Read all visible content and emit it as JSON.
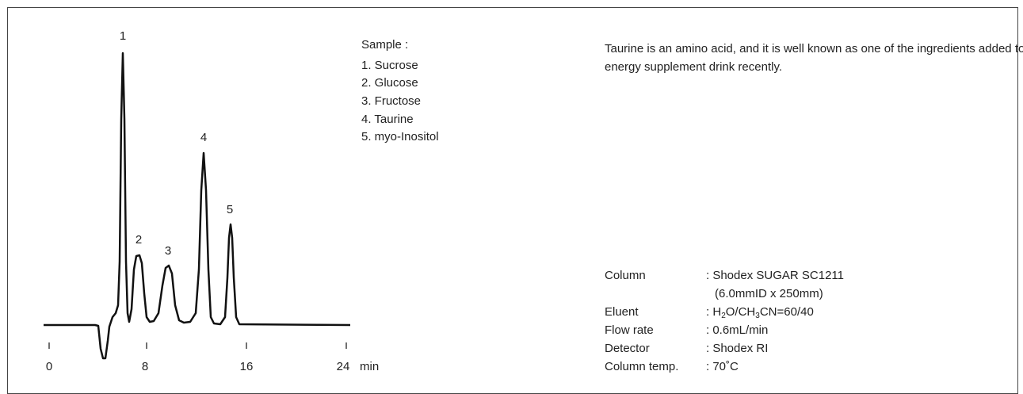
{
  "chromatogram": {
    "peak_labels": [
      "1",
      "2",
      "3",
      "4",
      "5"
    ],
    "x_ticks": [
      "0",
      "8",
      "16",
      "24"
    ],
    "x_unit": "min"
  },
  "sample": {
    "title": "Sample :",
    "items": [
      "1. Sucrose",
      "2. Glucose",
      "3. Fructose",
      "4. Taurine",
      "5. myo-Inositol"
    ]
  },
  "description": "Taurine is an amino acid, and it is well known as one of the ingredients added to energy supplement drink recently.",
  "conditions": [
    {
      "label": "Column",
      "value": ": Shodex SUGAR SC1211",
      "detail": "(6.0mmID x 250mm)"
    },
    {
      "label": "Eluent",
      "value": ": H2O/CH3CN=60/40"
    },
    {
      "label": "Flow rate",
      "value": ": 0.6mL/min"
    },
    {
      "label": "Detector",
      "value": ": Shodex RI"
    },
    {
      "label": "Column temp.",
      "value": ": 70˚C"
    }
  ]
}
